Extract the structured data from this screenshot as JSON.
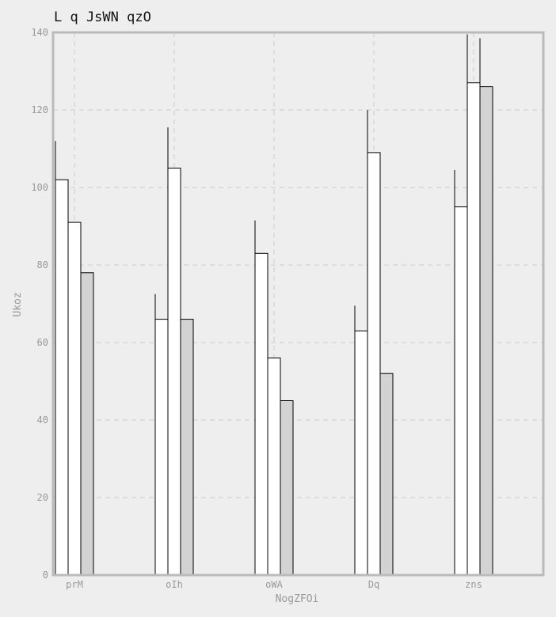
{
  "chart_data": {
    "type": "bar",
    "title": "L q JsWN qzO",
    "xlabel": "NogZFOi",
    "ylabel": "Ukoz",
    "ylim": [
      0,
      140
    ],
    "yticks": [
      0,
      20,
      40,
      60,
      80,
      100,
      120,
      140
    ],
    "grid": true,
    "categories": [
      "prM",
      "oIh",
      "oWA",
      "Dq",
      "zns"
    ],
    "series": [
      {
        "color": "#ffffff",
        "values": [
          102,
          66,
          83,
          63,
          95
        ],
        "errors": [
          10,
          6.5,
          8.5,
          6.5,
          9.5
        ]
      },
      {
        "color": "#ffffff",
        "values": [
          91,
          105,
          56,
          109,
          127
        ],
        "errors": [
          9,
          10.5,
          5.5,
          11,
          12.5
        ]
      },
      {
        "color": "#d3d3d3",
        "values": [
          78,
          66,
          45,
          52,
          126
        ],
        "errors": [
          8,
          6.5,
          4.5,
          5.5,
          12.5
        ]
      }
    ]
  }
}
